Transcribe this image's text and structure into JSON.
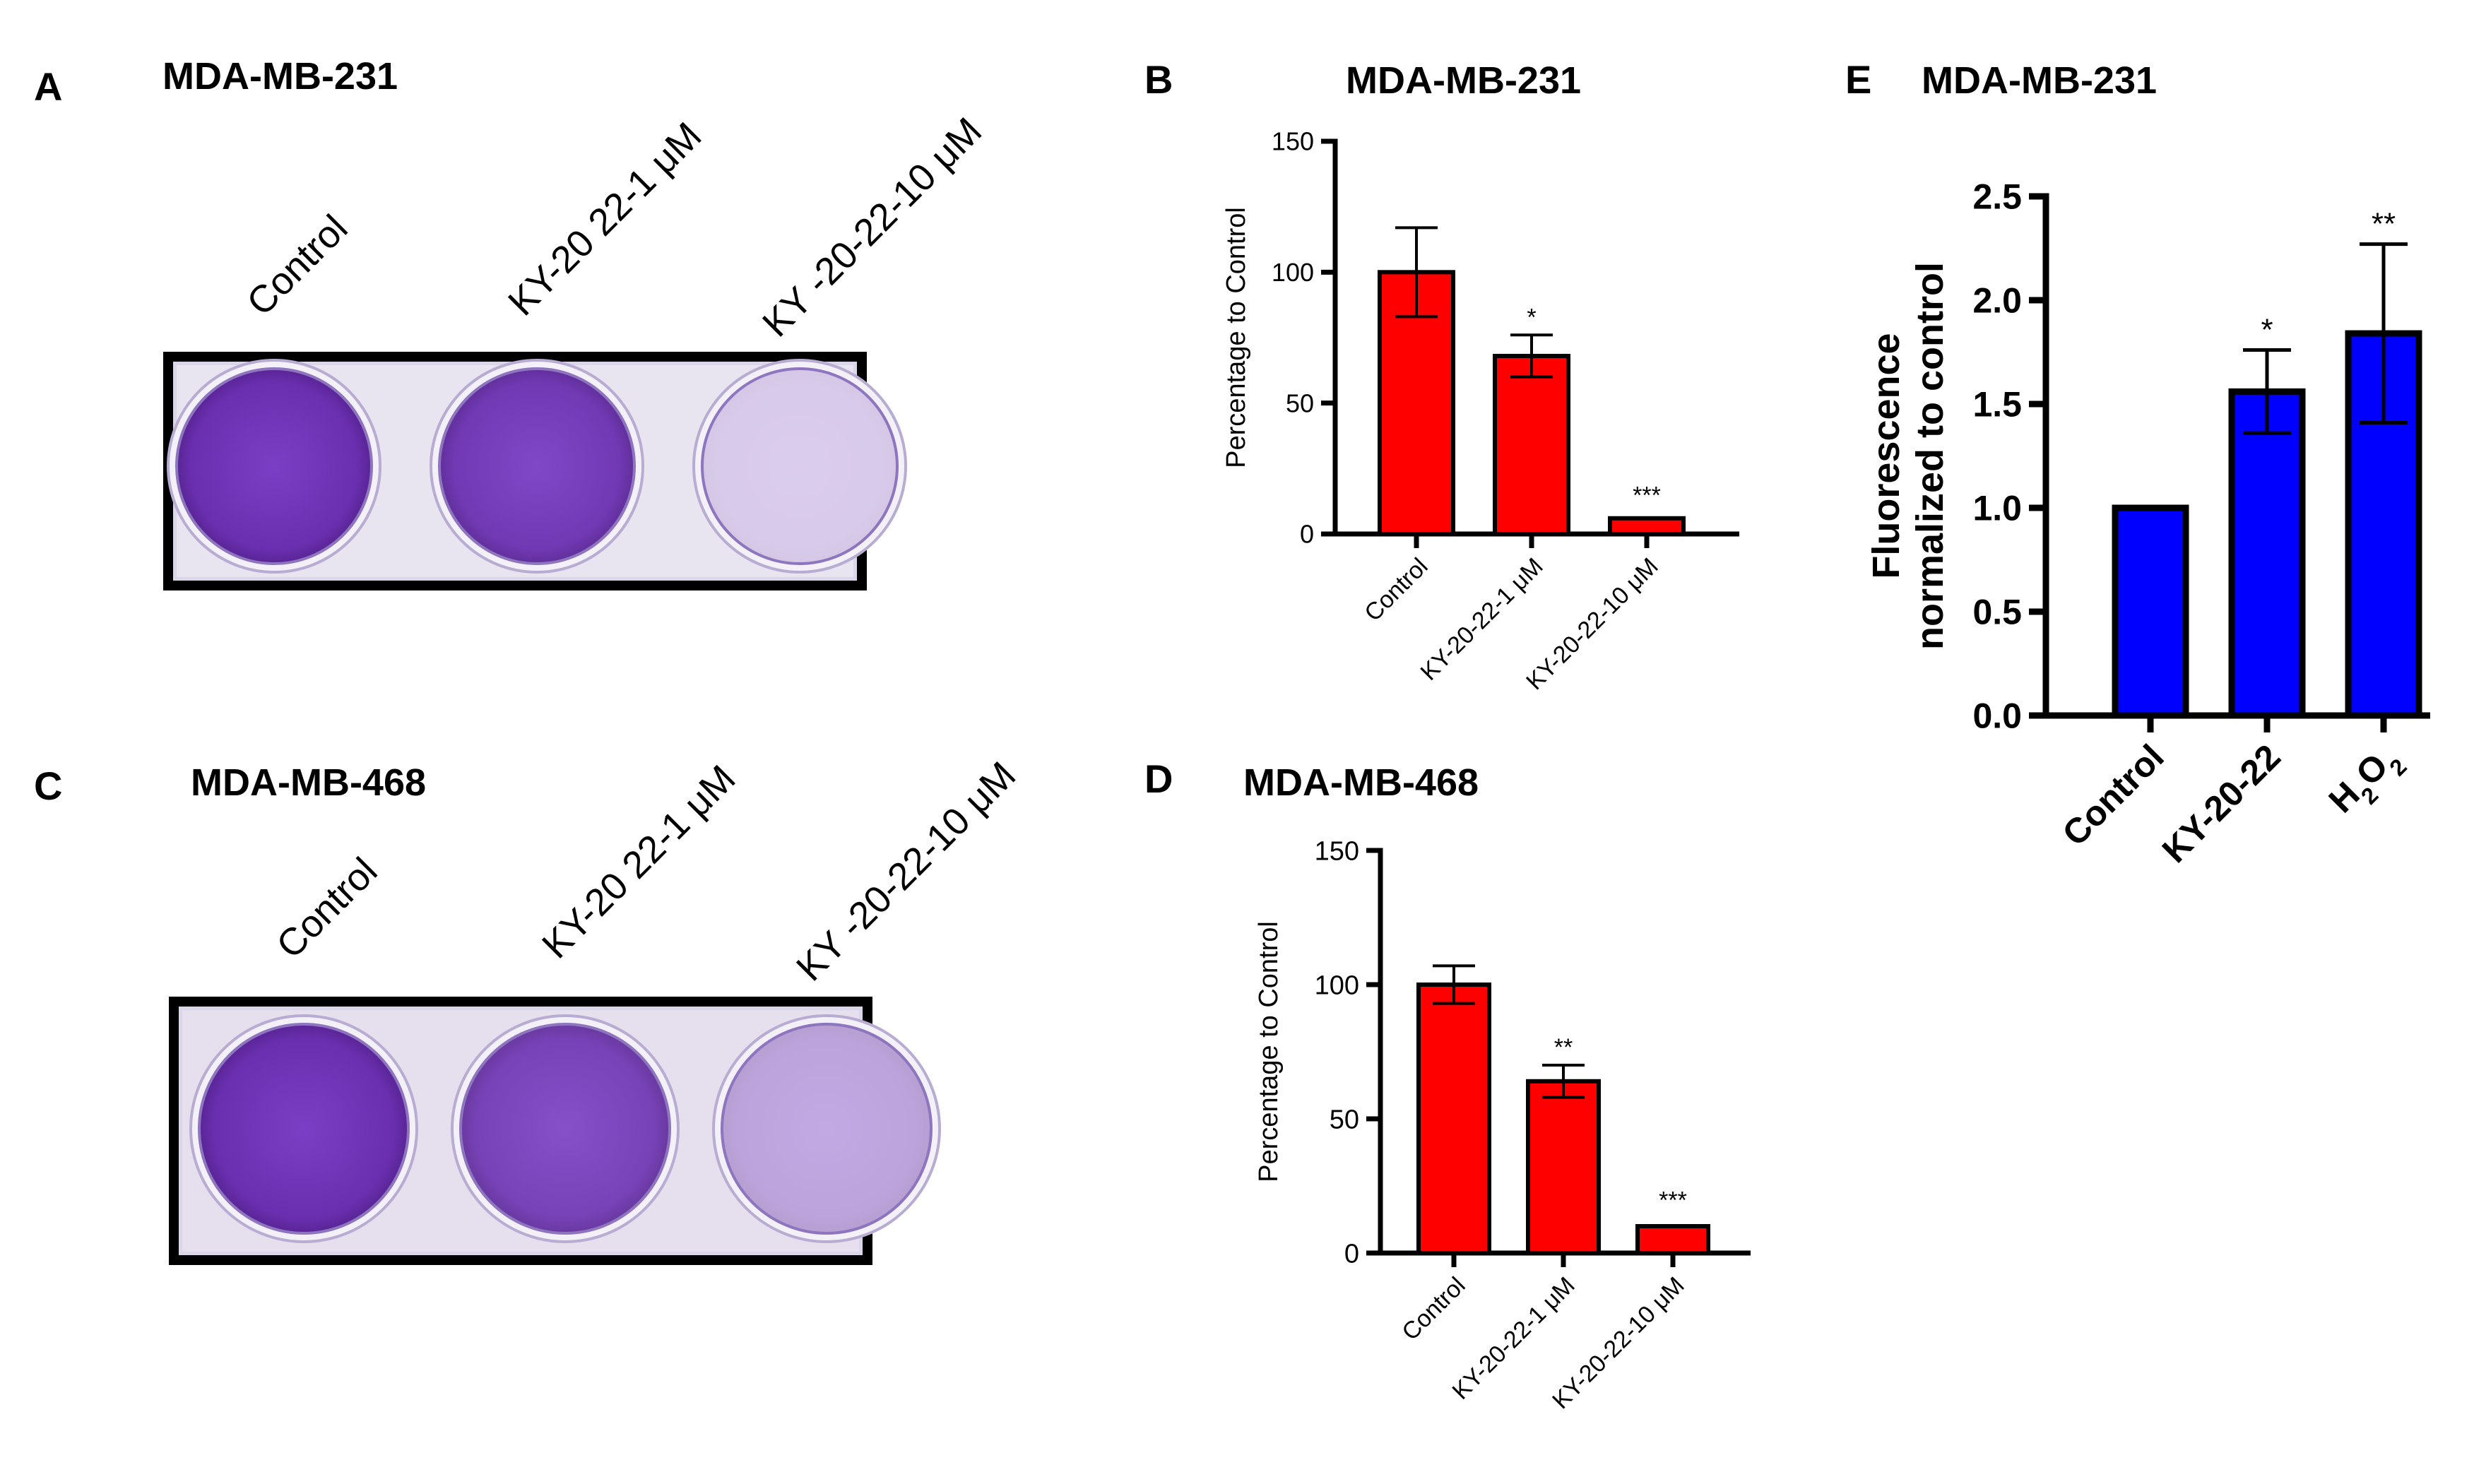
{
  "panels": {
    "A": {
      "letter": "A",
      "title": "MDA-MB-231",
      "plate_labels": [
        "Control",
        "KY-20 22-1 μM",
        "KY -20-22-10 μM"
      ],
      "well_staining": [
        1.0,
        0.95,
        0.2
      ]
    },
    "B": {
      "letter": "B"
    },
    "C": {
      "letter": "C",
      "title": "MDA-MB-468",
      "plate_labels": [
        "Control",
        "KY-20 22-1 μM",
        "KY -20-22-10 μM"
      ],
      "well_staining": [
        1.0,
        0.9,
        0.4
      ]
    },
    "D": {
      "letter": "D"
    },
    "E": {
      "letter": "E"
    }
  },
  "colors": {
    "bar_red": "#ff0000",
    "bar_blue": "#0000ff",
    "stain": "#6a2fb0",
    "frame": "#000000"
  },
  "chart_data": [
    {
      "id": "B",
      "type": "bar",
      "title": "MDA-MB-231",
      "xlabel": "",
      "ylabel": "Percentage to Control",
      "categories": [
        "Control",
        "KY-20-22-1 μM",
        "KY-20-22-10 μM"
      ],
      "values": [
        100,
        68,
        6
      ],
      "errors": [
        17,
        8,
        2
      ],
      "significance": [
        "",
        "*",
        "***"
      ],
      "ylim": [
        0,
        150
      ],
      "yticks": [
        "0",
        "50",
        "100",
        "150"
      ],
      "color": "#ff0000",
      "grid": false,
      "legend": "none"
    },
    {
      "id": "D",
      "type": "bar",
      "title": "MDA-MB-468",
      "xlabel": "",
      "ylabel": "Percentage to Control",
      "categories": [
        "Control",
        "KY-20-22-1 μM",
        "KY-20-22-10 μM"
      ],
      "values": [
        100,
        64,
        10
      ],
      "errors": [
        7,
        6,
        3
      ],
      "significance": [
        "",
        "**",
        "***"
      ],
      "ylim": [
        0,
        150
      ],
      "yticks": [
        "0",
        "50",
        "100",
        "150"
      ],
      "color": "#ff0000",
      "grid": false,
      "legend": "none"
    },
    {
      "id": "E",
      "type": "bar",
      "title": "MDA-MB-231",
      "xlabel": "",
      "ylabel": "Fluorescence normalized to control",
      "ylabel_lines": [
        "Fluorescence",
        "normalized to control"
      ],
      "categories": [
        "Control",
        "KY-20-22",
        "H2O2"
      ],
      "values": [
        1.0,
        1.56,
        1.84
      ],
      "errors": [
        0.01,
        0.2,
        0.43
      ],
      "significance": [
        "",
        "*",
        "**"
      ],
      "ylim": [
        0,
        2.5
      ],
      "yticks": [
        "0.0",
        "0.5",
        "1.0",
        "1.5",
        "2.0",
        "2.5"
      ],
      "color": "#0000ff",
      "grid": false,
      "legend": "none"
    }
  ]
}
